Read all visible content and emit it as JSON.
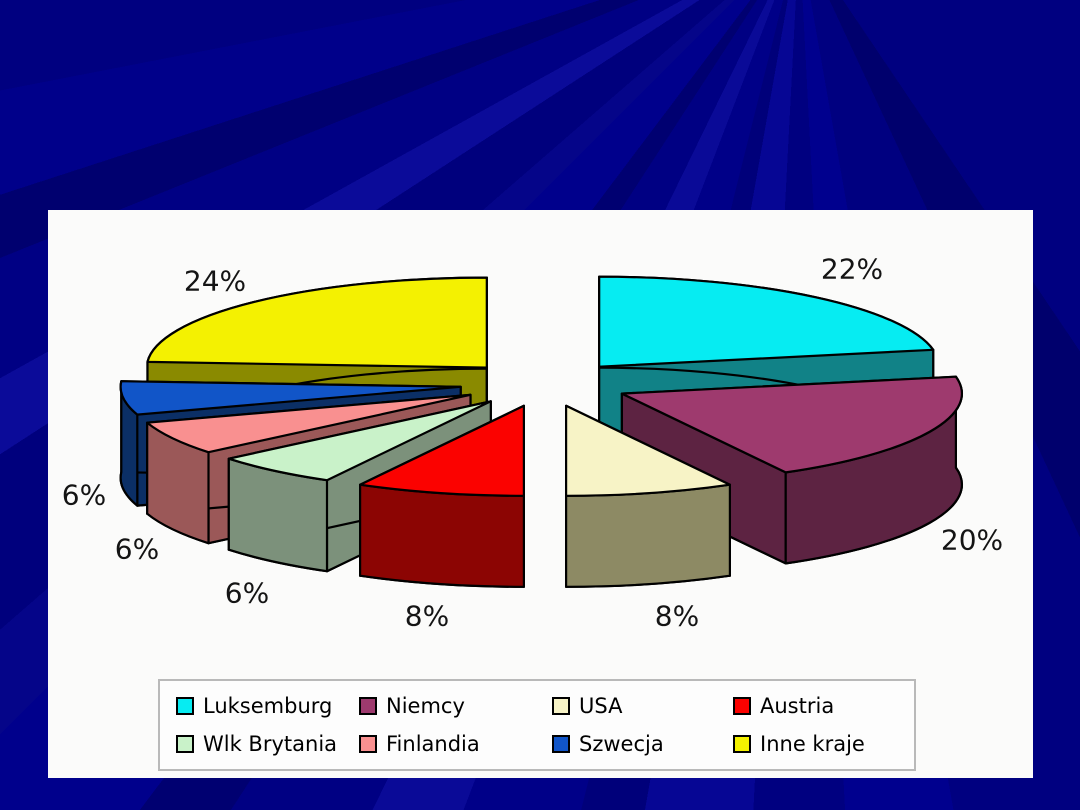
{
  "slide": {
    "background_color": "#000084",
    "panel_color": "#fbfbfa"
  },
  "chart_data": {
    "type": "pie",
    "style": "3d-exploded",
    "title": "",
    "unit": "%",
    "start_angle_deg": 0,
    "direction": "clockwise",
    "legend_position": "bottom",
    "data_label_format": "{value}%",
    "slices": [
      {
        "label": "Luksemburg",
        "value": 22,
        "color": "#06ecf2",
        "side_color": "#118287"
      },
      {
        "label": "Niemcy",
        "value": 20,
        "color": "#9e3a6e",
        "side_color": "#5d2342"
      },
      {
        "label": "USA",
        "value": 8,
        "color": "#f7f3c6",
        "side_color": "#8d8a64"
      },
      {
        "label": "Austria",
        "value": 8,
        "color": "#fb0200",
        "side_color": "#8c0503"
      },
      {
        "label": "Wlk Brytania",
        "value": 6,
        "color": "#c9f2c9",
        "side_color": "#7c917b"
      },
      {
        "label": "Finlandia",
        "value": 6,
        "color": "#f99090",
        "side_color": "#9b5858"
      },
      {
        "label": "Szwecja",
        "value": 6,
        "color": "#1155c8",
        "side_color": "#0b2f66"
      },
      {
        "label": "Inne kraje",
        "value": 24,
        "color": "#f4f101",
        "side_color": "#8a8a00"
      }
    ]
  }
}
